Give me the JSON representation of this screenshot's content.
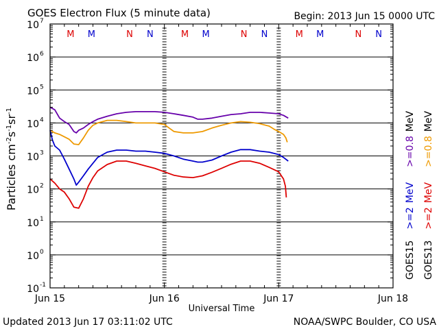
{
  "chart_data": {
    "type": "line",
    "title": "GOES Electron Flux (5 minute data)",
    "begin_label": "Begin: 2013 Jun 15 0000 UTC",
    "xlabel": "Universal Time",
    "ylabel": "Particles cm",
    "ylabel_parts": [
      "Particles cm",
      "-2",
      "s",
      "-1",
      "sr",
      "-1"
    ],
    "updated_label": "Updated 2013 Jun 17 03:11:02 UTC",
    "source_label": "NOAA/SWPC Boulder, CO USA",
    "x_range_hours": [
      0,
      72
    ],
    "x_ticks": [
      {
        "hour": 0,
        "label": "Jun 15"
      },
      {
        "hour": 24,
        "label": "Jun 16"
      },
      {
        "hour": 48,
        "label": "Jun 17"
      },
      {
        "hour": 72,
        "label": "Jun 18"
      }
    ],
    "y_log_range": [
      -1,
      7
    ],
    "y_ticks": [
      {
        "exp": 7,
        "label": "7"
      },
      {
        "exp": 6,
        "label": "6"
      },
      {
        "exp": 5,
        "label": "5"
      },
      {
        "exp": 4,
        "label": "4"
      },
      {
        "exp": 3,
        "label": "3"
      },
      {
        "exp": 2,
        "label": "2"
      },
      {
        "exp": 1,
        "label": "1"
      },
      {
        "exp": 0,
        "label": "0"
      },
      {
        "exp": -1,
        "label": "-1"
      }
    ],
    "y_tick_base": "10",
    "threshold": 1000,
    "markers": [
      {
        "hour": 4.3,
        "label": "M",
        "color": "#dd0000"
      },
      {
        "hour": 8.7,
        "label": "M",
        "color": "#0000cc"
      },
      {
        "hour": 16.7,
        "label": "N",
        "color": "#dd0000"
      },
      {
        "hour": 21.0,
        "label": "N",
        "color": "#0000cc"
      },
      {
        "hour": 28.3,
        "label": "M",
        "color": "#dd0000"
      },
      {
        "hour": 32.7,
        "label": "M",
        "color": "#0000cc"
      },
      {
        "hour": 40.7,
        "label": "N",
        "color": "#dd0000"
      },
      {
        "hour": 45.0,
        "label": "N",
        "color": "#0000cc"
      },
      {
        "hour": 52.3,
        "label": "M",
        "color": "#dd0000"
      },
      {
        "hour": 56.7,
        "label": "M",
        "color": "#0000cc"
      },
      {
        "hour": 64.7,
        "label": "N",
        "color": "#dd0000"
      },
      {
        "hour": 69.0,
        "label": "N",
        "color": "#0000cc"
      }
    ],
    "legend": [
      {
        "satellite": "GOES15",
        "energy": ">=2",
        "unit": "MeV",
        "color": "#0000cc"
      },
      {
        "satellite": "GOES13",
        "energy": ">=2",
        "unit": "MeV",
        "color": "#dd0000"
      },
      {
        "energy": ">=0.8",
        "unit": "MeV",
        "color": "#6600aa"
      },
      {
        "energy": ">=0.8",
        "unit": "MeV",
        "color": "#ee9900"
      }
    ],
    "series": [
      {
        "name": "GOES15 >=0.8 MeV",
        "color": "#6600aa",
        "points": [
          [
            0,
            30000
          ],
          [
            1,
            25000
          ],
          [
            2,
            14000
          ],
          [
            3,
            11000
          ],
          [
            4,
            9000
          ],
          [
            5,
            5500
          ],
          [
            5.5,
            5000
          ],
          [
            6,
            6000
          ],
          [
            7,
            7000
          ],
          [
            8,
            9000
          ],
          [
            9,
            11000
          ],
          [
            10,
            13000
          ],
          [
            12,
            16000
          ],
          [
            14,
            19000
          ],
          [
            16,
            21000
          ],
          [
            18,
            22000
          ],
          [
            20,
            22000
          ],
          [
            22,
            22000
          ],
          [
            24,
            21000
          ],
          [
            26,
            19000
          ],
          [
            28,
            17000
          ],
          [
            30,
            15000
          ],
          [
            31,
            13000
          ],
          [
            32,
            13000
          ],
          [
            34,
            14000
          ],
          [
            36,
            16000
          ],
          [
            38,
            18000
          ],
          [
            40,
            19000
          ],
          [
            42,
            21000
          ],
          [
            44,
            21000
          ],
          [
            46,
            20000
          ],
          [
            48,
            19000
          ],
          [
            49,
            17000
          ],
          [
            50,
            14000
          ]
        ]
      },
      {
        "name": "GOES13 >=0.8 MeV",
        "color": "#ee9900",
        "points": [
          [
            0,
            6000
          ],
          [
            1,
            5000
          ],
          [
            2,
            4500
          ],
          [
            3,
            3800
          ],
          [
            4,
            3200
          ],
          [
            5,
            2300
          ],
          [
            6,
            2200
          ],
          [
            7,
            3500
          ],
          [
            8,
            6000
          ],
          [
            9,
            8500
          ],
          [
            10,
            10000
          ],
          [
            12,
            12000
          ],
          [
            14,
            12000
          ],
          [
            16,
            11000
          ],
          [
            18,
            10000
          ],
          [
            20,
            10000
          ],
          [
            22,
            10000
          ],
          [
            24,
            9000
          ],
          [
            25,
            7000
          ],
          [
            26,
            5500
          ],
          [
            28,
            5000
          ],
          [
            30,
            5000
          ],
          [
            32,
            5500
          ],
          [
            34,
            7000
          ],
          [
            36,
            8500
          ],
          [
            38,
            10000
          ],
          [
            40,
            11000
          ],
          [
            42,
            10500
          ],
          [
            44,
            9500
          ],
          [
            46,
            8000
          ],
          [
            47,
            6500
          ],
          [
            48,
            5500
          ],
          [
            49,
            4500
          ],
          [
            49.5,
            3500
          ],
          [
            49.8,
            2600
          ]
        ]
      },
      {
        "name": "GOES15 >=2 MeV",
        "color": "#0000cc",
        "points": [
          [
            0,
            6000
          ],
          [
            0.5,
            3000
          ],
          [
            1,
            2000
          ],
          [
            2,
            1500
          ],
          [
            3,
            800
          ],
          [
            4,
            400
          ],
          [
            5,
            200
          ],
          [
            5.5,
            130
          ],
          [
            6,
            160
          ],
          [
            7,
            250
          ],
          [
            8,
            400
          ],
          [
            9,
            600
          ],
          [
            10,
            900
          ],
          [
            12,
            1300
          ],
          [
            14,
            1500
          ],
          [
            16,
            1500
          ],
          [
            18,
            1400
          ],
          [
            20,
            1400
          ],
          [
            22,
            1300
          ],
          [
            24,
            1200
          ],
          [
            26,
            1000
          ],
          [
            28,
            800
          ],
          [
            30,
            700
          ],
          [
            31,
            650
          ],
          [
            32,
            650
          ],
          [
            34,
            750
          ],
          [
            36,
            1000
          ],
          [
            38,
            1300
          ],
          [
            40,
            1550
          ],
          [
            42,
            1550
          ],
          [
            44,
            1400
          ],
          [
            46,
            1300
          ],
          [
            48,
            1100
          ],
          [
            49,
            900
          ],
          [
            50,
            700
          ]
        ]
      },
      {
        "name": "GOES13 >=2 MeV",
        "color": "#dd0000",
        "points": [
          [
            0,
            200
          ],
          [
            1,
            150
          ],
          [
            2,
            100
          ],
          [
            3,
            80
          ],
          [
            4,
            50
          ],
          [
            5,
            28
          ],
          [
            6,
            26
          ],
          [
            7,
            50
          ],
          [
            8,
            120
          ],
          [
            9,
            220
          ],
          [
            10,
            350
          ],
          [
            12,
            550
          ],
          [
            14,
            700
          ],
          [
            16,
            700
          ],
          [
            18,
            600
          ],
          [
            20,
            500
          ],
          [
            22,
            420
          ],
          [
            24,
            330
          ],
          [
            26,
            260
          ],
          [
            28,
            230
          ],
          [
            30,
            220
          ],
          [
            32,
            250
          ],
          [
            34,
            320
          ],
          [
            36,
            420
          ],
          [
            38,
            560
          ],
          [
            40,
            700
          ],
          [
            42,
            700
          ],
          [
            44,
            600
          ],
          [
            46,
            450
          ],
          [
            48,
            330
          ],
          [
            49,
            200
          ],
          [
            49.4,
            120
          ],
          [
            49.6,
            55
          ]
        ]
      }
    ]
  }
}
